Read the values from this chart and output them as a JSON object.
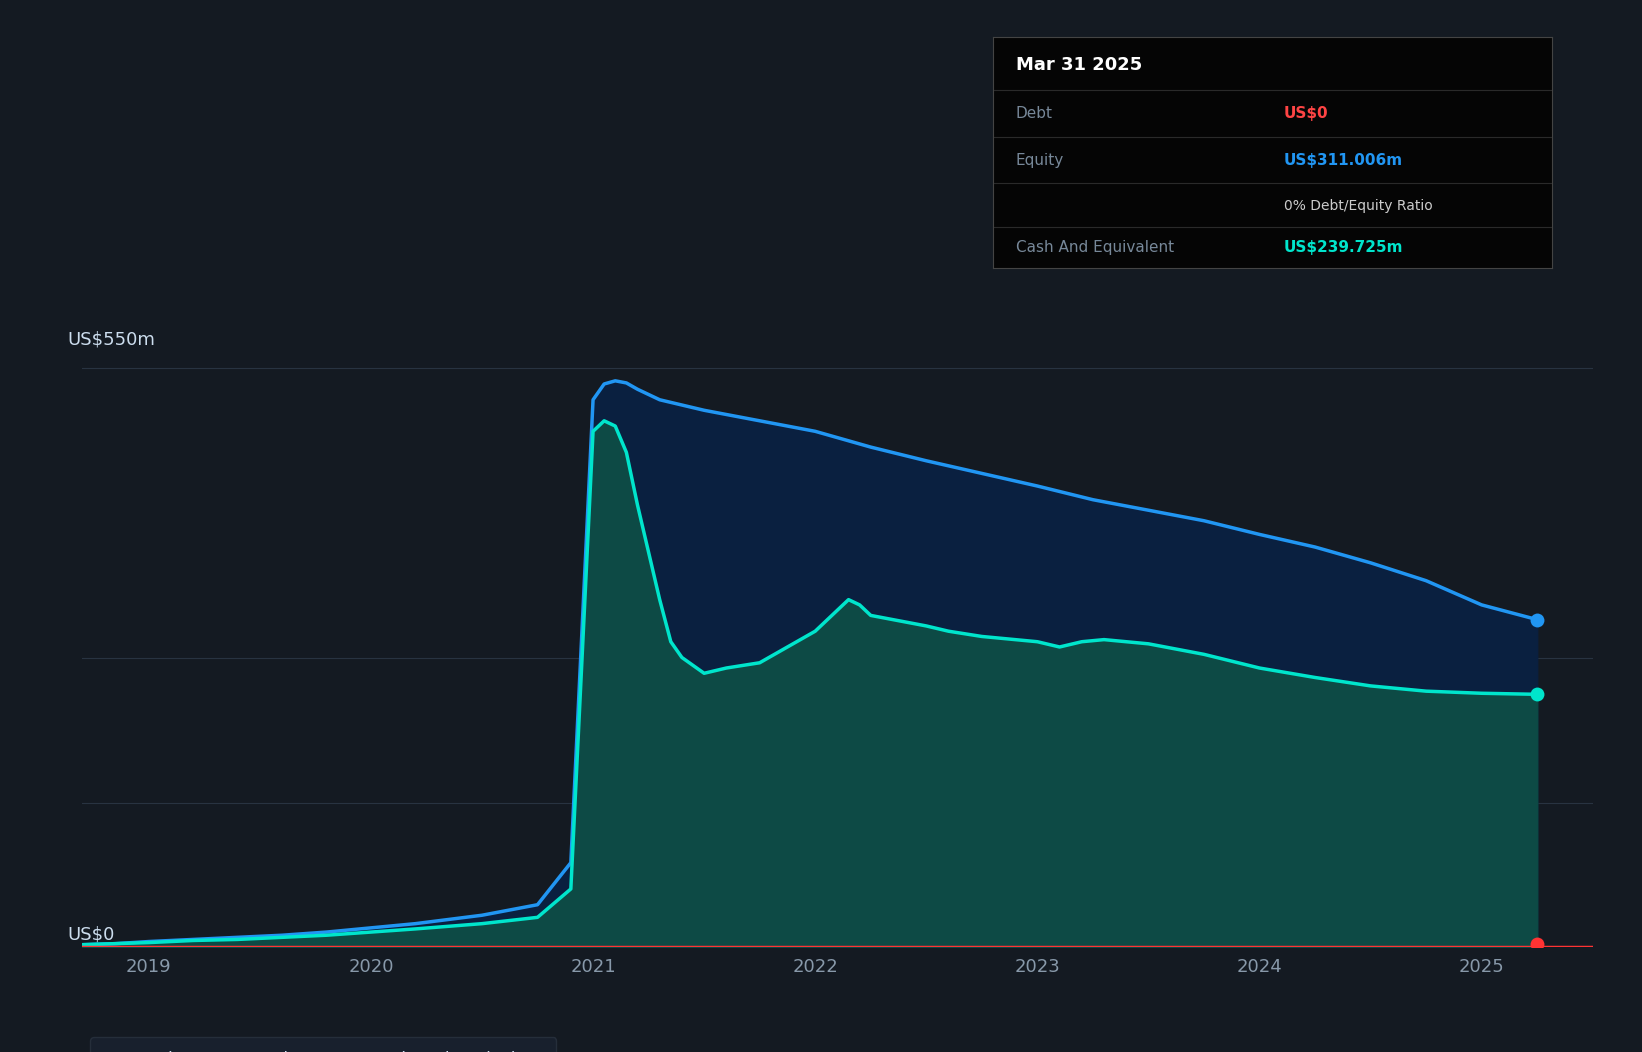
{
  "background_color": "#141a22",
  "plot_bg_color": "#141a22",
  "grid_color": "#2e3a4a",
  "ylabel": "US$550m",
  "y0_label": "US$0",
  "ylim": [
    0,
    620
  ],
  "xlim": [
    2018.7,
    2025.5
  ],
  "xticks": [
    2019,
    2020,
    2021,
    2022,
    2023,
    2024,
    2025
  ],
  "equity_color": "#2196f3",
  "equity_fill_color": "#0a2040",
  "cash_color": "#00e5cc",
  "cash_fill_color": "#0d4a45",
  "debt_color": "#ff3333",
  "tooltip_title": "Mar 31 2025",
  "tooltip_debt_label": "Debt",
  "tooltip_debt_value": "US$0",
  "tooltip_debt_color": "#ff4444",
  "tooltip_equity_label": "Equity",
  "tooltip_equity_value": "US$311.006m",
  "tooltip_equity_color": "#2196f3",
  "tooltip_ratio": "0% Debt/Equity Ratio",
  "tooltip_cash_label": "Cash And Equivalent",
  "tooltip_cash_value": "US$239.725m",
  "tooltip_cash_color": "#00e5cc",
  "legend_items": [
    "Debt",
    "Equity",
    "Cash And Equivalent"
  ],
  "legend_colors": [
    "#ff4444",
    "#2196f3",
    "#00e5cc"
  ],
  "equity_x": [
    2018.7,
    2018.85,
    2019.0,
    2019.2,
    2019.4,
    2019.6,
    2019.8,
    2020.0,
    2020.2,
    2020.5,
    2020.75,
    2020.9,
    2021.0,
    2021.05,
    2021.1,
    2021.15,
    2021.2,
    2021.3,
    2021.5,
    2021.75,
    2022.0,
    2022.25,
    2022.5,
    2022.75,
    2023.0,
    2023.25,
    2023.5,
    2023.75,
    2024.0,
    2024.25,
    2024.5,
    2024.75,
    2025.0,
    2025.25
  ],
  "equity_y": [
    2,
    3,
    5,
    7,
    9,
    11,
    14,
    18,
    22,
    30,
    40,
    80,
    520,
    535,
    538,
    536,
    530,
    520,
    510,
    500,
    490,
    475,
    462,
    450,
    438,
    425,
    415,
    405,
    392,
    380,
    365,
    348,
    325,
    311
  ],
  "cash_x": [
    2018.7,
    2018.85,
    2019.0,
    2019.2,
    2019.4,
    2019.6,
    2019.8,
    2020.0,
    2020.2,
    2020.5,
    2020.75,
    2020.9,
    2021.0,
    2021.05,
    2021.1,
    2021.15,
    2021.2,
    2021.3,
    2021.35,
    2021.4,
    2021.5,
    2021.6,
    2021.75,
    2022.0,
    2022.1,
    2022.15,
    2022.2,
    2022.25,
    2022.5,
    2022.6,
    2022.75,
    2023.0,
    2023.1,
    2023.2,
    2023.3,
    2023.5,
    2023.75,
    2024.0,
    2024.25,
    2024.5,
    2024.75,
    2025.0,
    2025.25
  ],
  "cash_y": [
    2,
    3,
    4,
    6,
    7,
    9,
    11,
    14,
    17,
    22,
    28,
    55,
    490,
    500,
    495,
    470,
    420,
    330,
    290,
    275,
    260,
    265,
    270,
    300,
    320,
    330,
    325,
    315,
    305,
    300,
    295,
    290,
    285,
    290,
    292,
    288,
    278,
    265,
    256,
    248,
    243,
    241,
    240
  ],
  "debt_y": 0,
  "dot_equity_x": 2025.25,
  "dot_equity_y": 311,
  "dot_cash_x": 2025.25,
  "dot_cash_y": 240,
  "dot_debt_x": 2025.25,
  "dot_debt_y": 3,
  "gridline_550": 550,
  "gridline_275": 275,
  "gridline_137": 137
}
